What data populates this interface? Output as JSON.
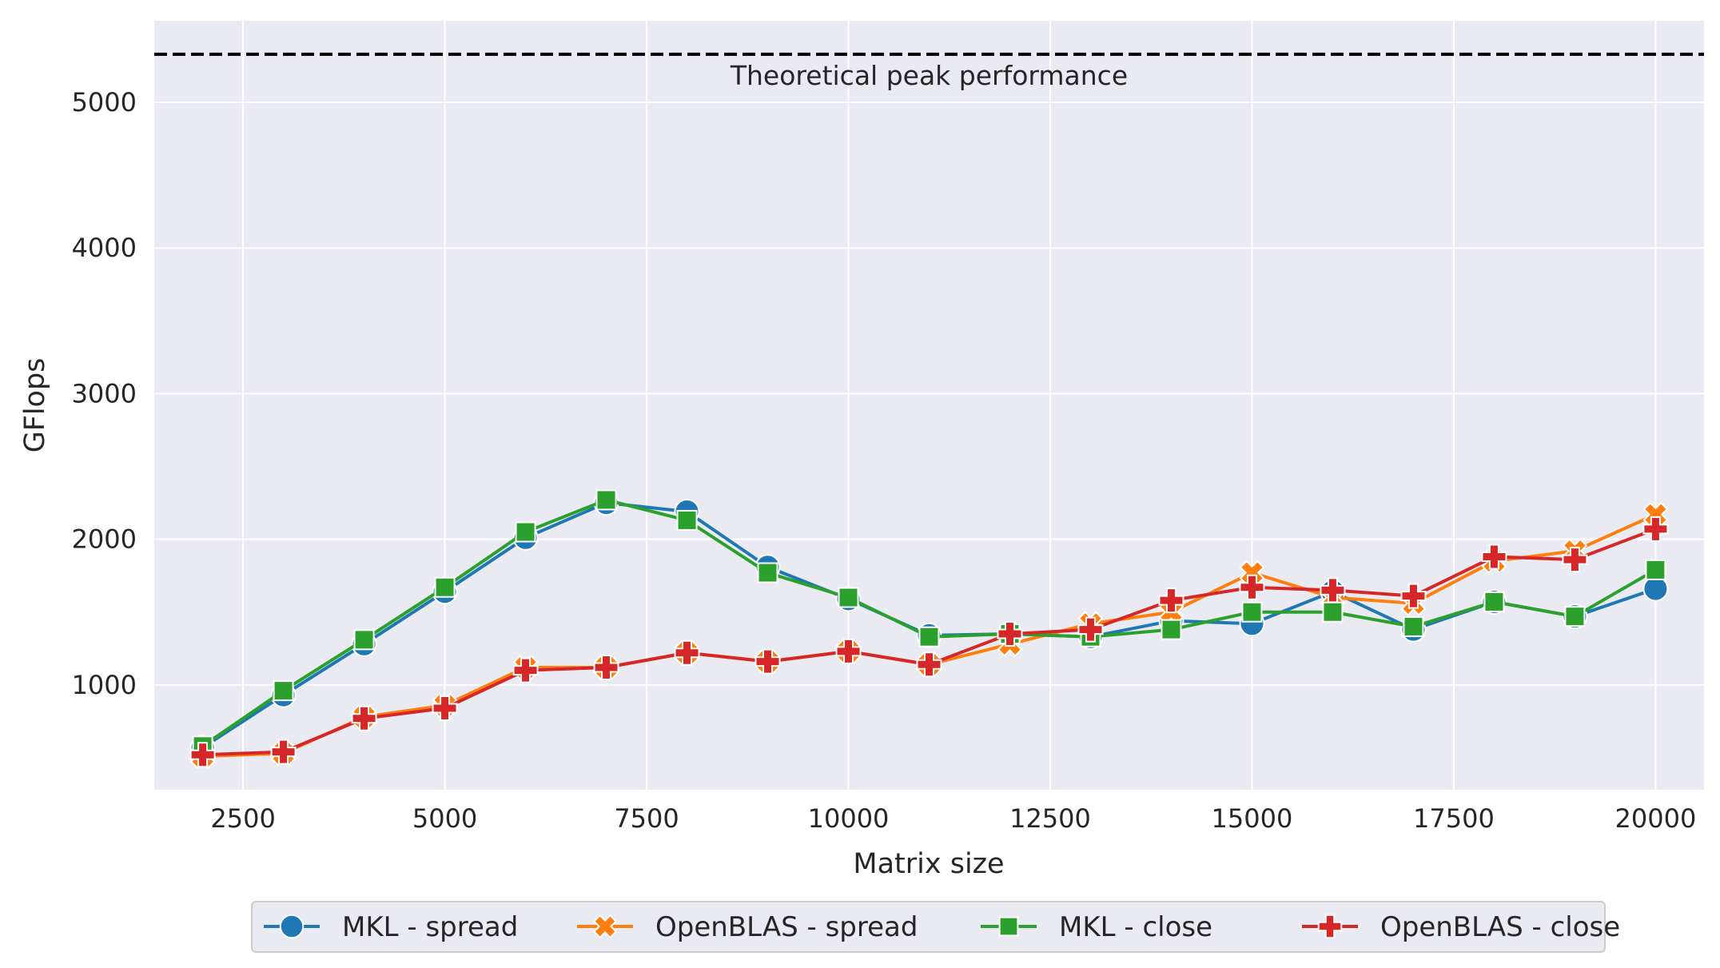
{
  "chart_data": {
    "type": "line",
    "xlabel": "Matrix size",
    "ylabel": "GFlops",
    "xlim": [
      1400,
      20600
    ],
    "ylim": [
      280,
      5560
    ],
    "x_ticks": [
      2500,
      5000,
      7500,
      10000,
      12500,
      15000,
      17500,
      20000
    ],
    "y_ticks": [
      1000,
      2000,
      3000,
      4000,
      5000
    ],
    "grid": true,
    "legend_position": "bottom-center",
    "x": [
      2000,
      3000,
      4000,
      5000,
      6000,
      7000,
      8000,
      9000,
      10000,
      11000,
      12000,
      13000,
      14000,
      15000,
      16000,
      17000,
      18000,
      19000,
      20000
    ],
    "series": [
      {
        "name": "MKL - spread",
        "color": "#1f77b4",
        "marker": "circle",
        "values": [
          570,
          930,
          1280,
          1640,
          2010,
          2250,
          2190,
          1810,
          1590,
          1340,
          1350,
          1330,
          1440,
          1420,
          1640,
          1380,
          1570,
          1470,
          1660
        ]
      },
      {
        "name": "OpenBLAS - spread",
        "color": "#ff7f0e",
        "marker": "x",
        "values": [
          510,
          530,
          780,
          860,
          1120,
          1120,
          1220,
          1160,
          1230,
          1140,
          1280,
          1420,
          1500,
          1770,
          1600,
          1560,
          1850,
          1920,
          2170
        ]
      },
      {
        "name": "MKL - close",
        "color": "#2ca02c",
        "marker": "square",
        "values": [
          580,
          960,
          1310,
          1670,
          2050,
          2270,
          2130,
          1770,
          1600,
          1330,
          1350,
          1330,
          1380,
          1500,
          1500,
          1400,
          1570,
          1470,
          1790
        ]
      },
      {
        "name": "OpenBLAS - close",
        "color": "#d62728",
        "marker": "plus",
        "values": [
          520,
          540,
          770,
          840,
          1100,
          1120,
          1220,
          1160,
          1230,
          1140,
          1350,
          1380,
          1580,
          1670,
          1650,
          1610,
          1880,
          1860,
          2070
        ]
      }
    ],
    "reference_line": {
      "y": 5330,
      "label": "Theoretical peak performance",
      "color": "#000000",
      "style": "dashed"
    }
  }
}
